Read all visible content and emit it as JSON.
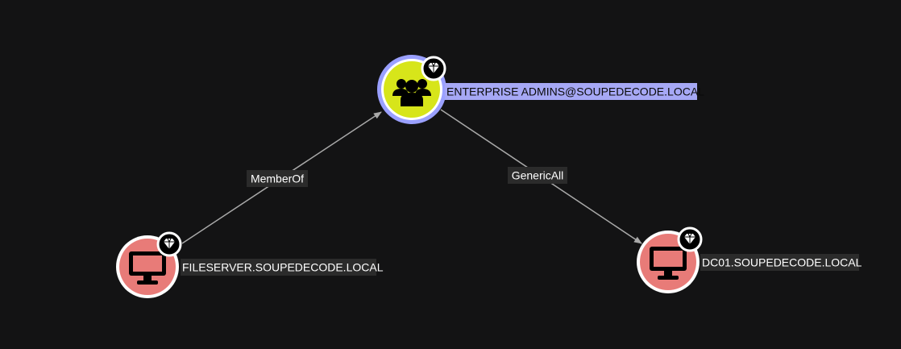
{
  "graph": {
    "nodes": {
      "enterprise_admins": {
        "label": "ENTERPRISE ADMINS@SOUPEDECODE.LOCAL",
        "type": "group",
        "icon": "users-icon",
        "badge": "gem-icon",
        "selected": true,
        "fill": "#d7e51a",
        "ring": "#9aa0ff"
      },
      "fileserver": {
        "label": "FILESERVER.SOUPEDECODE.LOCAL",
        "type": "computer",
        "icon": "monitor-icon",
        "badge": "gem-icon",
        "selected": false,
        "fill": "#e87b78"
      },
      "dc01": {
        "label": "DC01.SOUPEDECODE.LOCAL",
        "type": "computer",
        "icon": "monitor-icon",
        "badge": "gem-icon",
        "selected": false,
        "fill": "#e87b78"
      }
    },
    "edges": {
      "memberof": {
        "label": "MemberOf",
        "source": "fileserver",
        "target": "enterprise_admins"
      },
      "genericall": {
        "label": "GenericAll",
        "source": "enterprise_admins",
        "target": "dc01"
      }
    },
    "colors": {
      "background": "#131314",
      "edge": "#a9a9a9",
      "label_bg": "#2b2b2b",
      "label_text": "#ffffff",
      "selected_label_bg": "#a6a8f5",
      "selected_label_text": "#0a0a0a"
    }
  }
}
